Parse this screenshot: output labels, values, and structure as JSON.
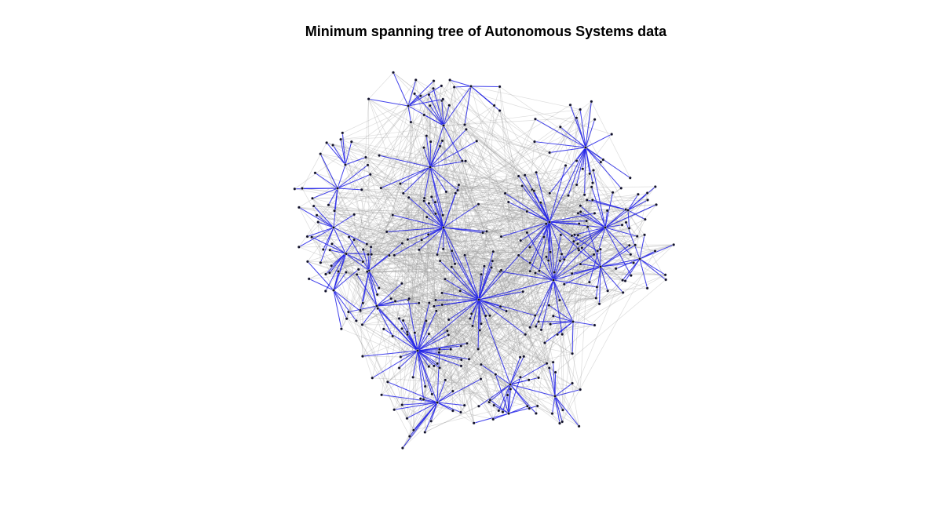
{
  "title": "Minimum spanning tree of Autonomous Systems data",
  "colors": {
    "tree_edge": "#1f1fe8",
    "background_edge": "#9a9a9a",
    "node_fill": "#10102a",
    "node_stroke": "#ffffff"
  },
  "graph": {
    "description_kind": "force-directed network",
    "tree_edges_highlighted": true
  }
}
